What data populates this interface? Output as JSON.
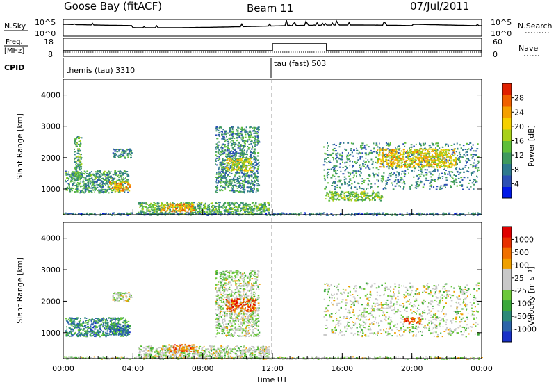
{
  "header": {
    "title": "Goose Bay (fitACF)",
    "beam": "Beam 11",
    "date": "07/Jul/2011"
  },
  "meta_panels": {
    "nsky_label": "N.Sky",
    "nsky_ticks": [
      "10^5",
      "10^0"
    ],
    "nsearch_label": "N.Search",
    "nsearch_ticks": [
      "10^5",
      "10^0"
    ],
    "freq_label_line1": "Freq.",
    "freq_label_line2": "[MHz]",
    "freq_ticks": [
      "18",
      "8"
    ],
    "nave_label": "Nave",
    "nave_ticks": [
      "60",
      "0"
    ],
    "cpid_label": "CPID",
    "cpid_segments": [
      {
        "name": "themis (tau) 3310",
        "start_hour": 0
      },
      {
        "name": "tau (fast) 503",
        "start_hour": 12
      }
    ]
  },
  "chart_data": [
    {
      "type": "heatmap",
      "panel": "power",
      "ylabel": "Slant Range [km]",
      "ylim": [
        180,
        4500
      ],
      "yticks": [
        1000,
        2000,
        3000,
        4000
      ],
      "xlim_hours": [
        0,
        24
      ],
      "colorbar": {
        "label": "Power [dB]",
        "ticks": [
          "28",
          "24",
          "20",
          "16",
          "12",
          "8",
          "4"
        ],
        "colors": [
          "#0018e8",
          "#2c50b4",
          "#2f7a8e",
          "#3f9a5e",
          "#5fbf3a",
          "#a8d018",
          "#f5d000",
          "#f5a000",
          "#f06000",
          "#e02000"
        ]
      },
      "echo_regions": [
        {
          "t0": 0.1,
          "t1": 3.7,
          "r0": 900,
          "r1": 1600,
          "level": 0.35
        },
        {
          "t0": 2.6,
          "t1": 3.8,
          "r0": 950,
          "r1": 1250,
          "level": 0.7
        },
        {
          "t0": 0.6,
          "t1": 1.0,
          "r0": 1300,
          "r1": 2700,
          "level": 0.4
        },
        {
          "t0": 2.8,
          "t1": 3.9,
          "r0": 2000,
          "r1": 2300,
          "level": 0.3
        },
        {
          "t0": 4.3,
          "t1": 11.8,
          "r0": 200,
          "r1": 600,
          "level": 0.4
        },
        {
          "t0": 5.5,
          "t1": 7.5,
          "r0": 300,
          "r1": 550,
          "level": 0.75
        },
        {
          "t0": 8.7,
          "t1": 11.2,
          "r0": 900,
          "r1": 3000,
          "level": 0.3
        },
        {
          "t0": 9.3,
          "t1": 10.8,
          "r0": 1600,
          "r1": 2000,
          "level": 0.6
        },
        {
          "t0": 14.9,
          "t1": 23.8,
          "r0": 1000,
          "r1": 2500,
          "level": 0.3
        },
        {
          "t0": 18.0,
          "t1": 22.5,
          "r0": 1700,
          "r1": 2300,
          "level": 0.65
        },
        {
          "t0": 15.0,
          "t1": 18.3,
          "r0": 650,
          "r1": 950,
          "level": 0.45
        },
        {
          "t0": 0.0,
          "t1": 24.0,
          "r0": 180,
          "r1": 260,
          "level": 0.25
        }
      ]
    },
    {
      "type": "heatmap",
      "panel": "velocity",
      "ylabel": "Slant Range [km]",
      "ylim": [
        180,
        4500
      ],
      "yticks": [
        1000,
        2000,
        3000,
        4000
      ],
      "xlim_hours": [
        0,
        24
      ],
      "colorbar": {
        "label": "Velocity [m s⁻¹]",
        "ticks": [
          "1000",
          "500",
          "100",
          "25",
          "-25",
          "-100",
          "-500",
          "-1000"
        ],
        "colors": [
          "#1830c8",
          "#2c64a8",
          "#2c8a78",
          "#3aa83a",
          "#6cc83a",
          "#c8c8c8",
          "#c8c8c8",
          "#f0a000",
          "#f07000",
          "#e83000",
          "#e00000"
        ]
      },
      "echo_regions": [
        {
          "t0": 0.1,
          "t1": 3.7,
          "r0": 900,
          "r1": 1500,
          "level": 0.25
        },
        {
          "t0": 2.6,
          "t1": 3.8,
          "r0": 950,
          "r1": 1250,
          "level": 0.2
        },
        {
          "t0": 2.8,
          "t1": 3.9,
          "r0": 2000,
          "r1": 2300,
          "level": 0.5
        },
        {
          "t0": 4.3,
          "t1": 11.8,
          "r0": 200,
          "r1": 600,
          "level": 0.5
        },
        {
          "t0": 6.0,
          "t1": 7.5,
          "r0": 400,
          "r1": 650,
          "level": 0.75
        },
        {
          "t0": 8.7,
          "t1": 11.2,
          "r0": 900,
          "r1": 3000,
          "level": 0.5
        },
        {
          "t0": 9.3,
          "t1": 11.0,
          "r0": 1700,
          "r1": 2100,
          "level": 0.82
        },
        {
          "t0": 14.9,
          "t1": 23.8,
          "r0": 900,
          "r1": 2600,
          "level": 0.5
        },
        {
          "t0": 19.5,
          "t1": 20.5,
          "r0": 1300,
          "r1": 1500,
          "level": 0.8
        },
        {
          "t0": 0.0,
          "t1": 24.0,
          "r0": 180,
          "r1": 260,
          "level": 0.5
        }
      ]
    }
  ],
  "x_axis": {
    "ticks": [
      "00:00",
      "04:00",
      "08:00",
      "12:00",
      "16:00",
      "20:00",
      "00:00"
    ],
    "label": "Time UT"
  }
}
